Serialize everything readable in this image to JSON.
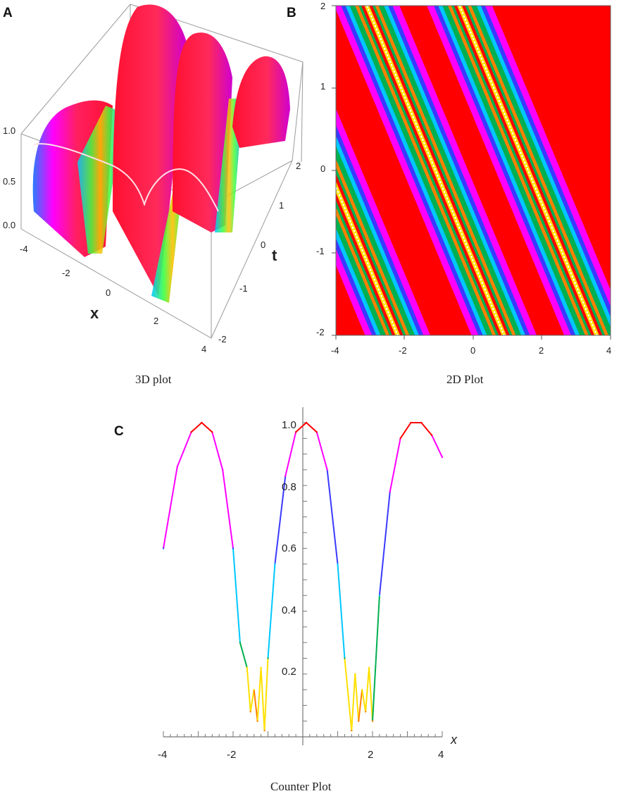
{
  "panels": {
    "a": {
      "letter": "A",
      "caption": "3D plot",
      "xlabel": "x",
      "tlabel": "t",
      "zticks": [
        "1.0",
        "0.5",
        "0.0"
      ],
      "xticks": [
        "-4",
        "-2",
        "0",
        "2",
        "4"
      ],
      "tticks": [
        "2",
        "1",
        "0",
        "-1",
        "-2"
      ]
    },
    "b": {
      "letter": "B",
      "caption": "2D Plot",
      "yticks": [
        "2",
        "1",
        "0",
        "-1",
        "-2"
      ],
      "xticks": [
        "-4",
        "-2",
        "0",
        "2",
        "4"
      ]
    },
    "c": {
      "letter": "C",
      "caption": "Counter Plot",
      "xlabel": "x",
      "yticks": [
        "1.0",
        "0.8",
        "0.6",
        "0.4",
        "0.2"
      ],
      "xticks": [
        "-4",
        "-2",
        "2",
        "4"
      ]
    }
  },
  "colors": {
    "red": "#ff0000",
    "magenta": "#ff00ff",
    "blue": "#3a3aff",
    "cyan": "#00c8ff",
    "green": "#00b050",
    "yellow": "#ffe000",
    "orange": "#ff8000"
  },
  "chart_data": [
    {
      "type": "surface3d",
      "panel": "A",
      "x_range": [
        -4,
        4
      ],
      "t_range": [
        -2,
        2
      ],
      "z_range": [
        0,
        1
      ],
      "note_profile_x": [
        -4,
        -3,
        -2,
        -1.5,
        -1,
        0,
        1,
        1.5,
        2,
        3,
        4
      ],
      "profile_z": [
        0.6,
        1.0,
        0.6,
        0.0,
        0.6,
        1.0,
        0.6,
        0.0,
        0.6,
        1.0,
        0.9
      ]
    },
    {
      "type": "heatmap",
      "panel": "B",
      "x_range": [
        -4,
        4
      ],
      "y_range": [
        -2,
        2
      ],
      "band_slope": -1.0,
      "band_centers_at_y0": [
        -4.2,
        -1.1,
        1.6
      ]
    },
    {
      "type": "line",
      "panel": "C",
      "xlim": [
        -4,
        4
      ],
      "ylim": [
        0,
        1.05
      ],
      "x": [
        -4,
        -3.6,
        -3.2,
        -2.9,
        -2.6,
        -2.3,
        -2.0,
        -1.8,
        -1.6,
        -1.5,
        -1.4,
        -1.3,
        -1.2,
        -1.1,
        -1.0,
        -0.8,
        -0.5,
        -0.2,
        0.1,
        0.4,
        0.7,
        1.0,
        1.2,
        1.4,
        1.5,
        1.6,
        1.7,
        1.8,
        1.9,
        2.0,
        2.2,
        2.5,
        2.8,
        3.1,
        3.4,
        3.7,
        4.0
      ],
      "y": [
        0.6,
        0.86,
        0.97,
        1.0,
        0.97,
        0.85,
        0.6,
        0.3,
        0.22,
        0.08,
        0.15,
        0.05,
        0.22,
        0.02,
        0.25,
        0.55,
        0.83,
        0.97,
        1.0,
        0.97,
        0.85,
        0.55,
        0.25,
        0.02,
        0.2,
        0.05,
        0.15,
        0.08,
        0.22,
        0.05,
        0.45,
        0.78,
        0.95,
        1.0,
        1.0,
        0.96,
        0.89
      ]
    }
  ]
}
